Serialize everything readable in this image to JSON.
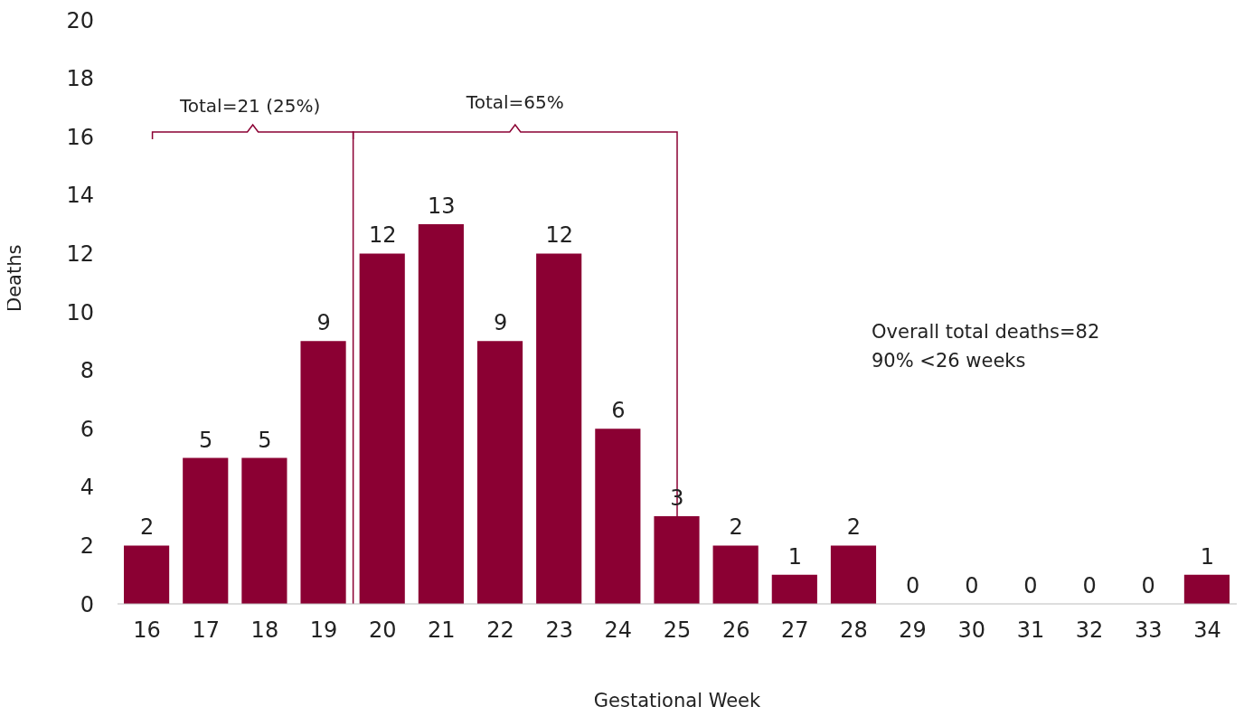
{
  "chart_data": {
    "type": "bar",
    "xlabel": "Gestational Week",
    "ylabel": "Deaths",
    "x": [
      16,
      17,
      18,
      19,
      20,
      21,
      22,
      23,
      24,
      25,
      26,
      27,
      28,
      29,
      30,
      31,
      32,
      33,
      34
    ],
    "values": [
      2,
      5,
      5,
      9,
      12,
      13,
      9,
      12,
      6,
      3,
      2,
      1,
      2,
      0,
      0,
      0,
      0,
      0,
      1
    ],
    "color": "#8b0033",
    "xlim": [
      15.5,
      34.5
    ],
    "xticks": [
      16,
      17,
      18,
      19,
      20,
      21,
      22,
      23,
      24,
      25,
      26,
      27,
      28,
      29,
      30,
      31,
      32,
      33,
      34
    ],
    "ylim": [
      0,
      20
    ],
    "yticks": [
      0,
      2,
      4,
      6,
      8,
      10,
      12,
      14,
      16,
      18,
      20
    ],
    "data_labels": true,
    "ref_lines": [
      {
        "axis": "x",
        "value": 19.5,
        "color": "#8b0033"
      }
    ],
    "annotations": [
      "Total=21 (25%)",
      "Total=65%",
      "Overall total deaths=82",
      "90% <26 weeks"
    ]
  }
}
